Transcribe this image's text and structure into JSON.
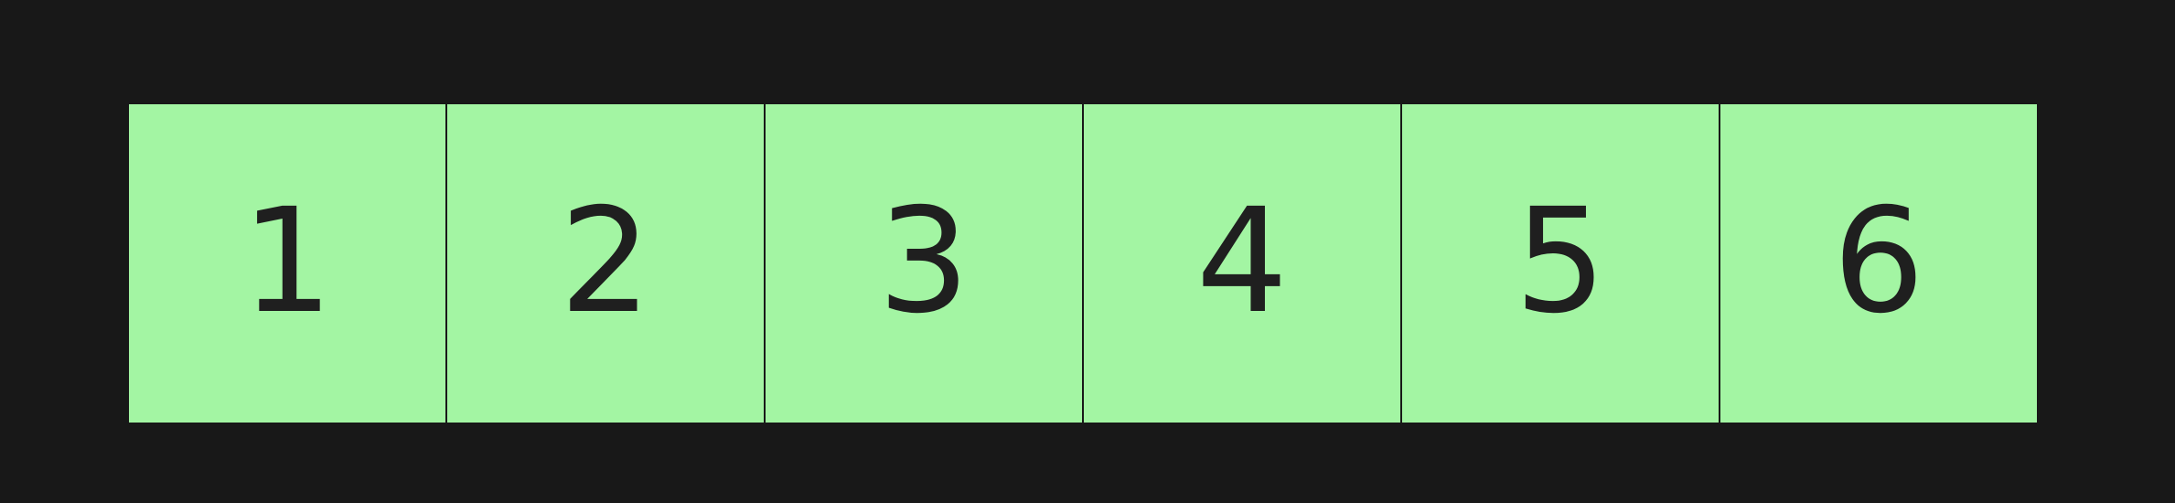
{
  "colors": {
    "background": "#181818",
    "cell_fill": "#a3f5a3",
    "text": "#1f1f1f"
  },
  "cells": [
    {
      "label": "1"
    },
    {
      "label": "2"
    },
    {
      "label": "3"
    },
    {
      "label": "4"
    },
    {
      "label": "5"
    },
    {
      "label": "6"
    }
  ]
}
